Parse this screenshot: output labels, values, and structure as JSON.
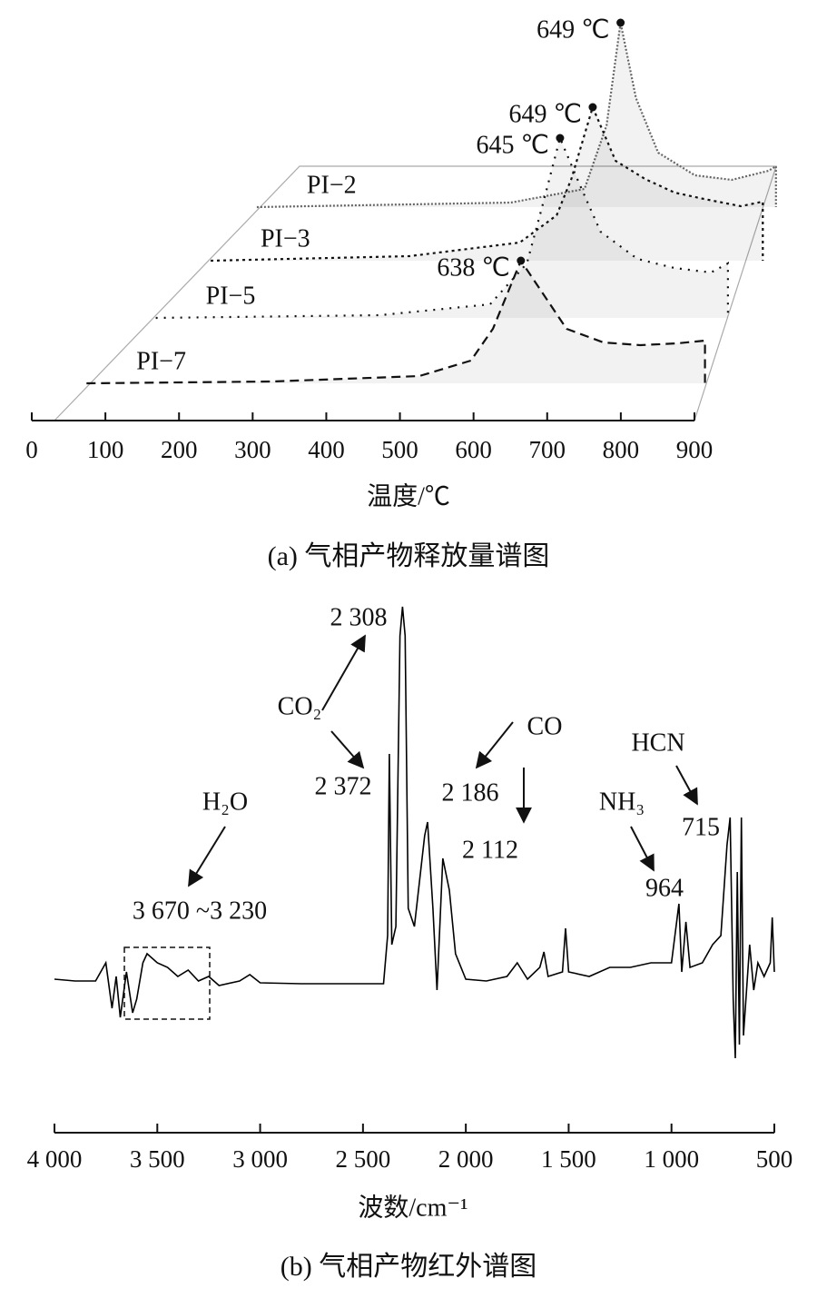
{
  "chart_data": [
    {
      "type": "waterfall",
      "xlabel": "温度/℃",
      "caption": "(a) 气相产物释放量谱图",
      "xlim": [
        0,
        900
      ],
      "xticks": [
        0,
        100,
        200,
        300,
        400,
        500,
        600,
        700,
        800,
        900
      ],
      "series": [
        {
          "name": "PI−2",
          "line_style": "dense-dotted",
          "color": "#666666",
          "x": [
            155,
            500,
            600,
            630,
            649,
            670,
            700,
            750,
            800,
            850,
            860,
            860
          ],
          "values": [
            0,
            5,
            20,
            90,
            203,
            120,
            60,
            35,
            30,
            40,
            45,
            0
          ],
          "peak_x": 649,
          "peak_label": "649 ℃"
        },
        {
          "name": "PI−3",
          "line_style": "dotted",
          "color": "#111111",
          "x": [
            130,
            400,
            550,
            600,
            620,
            649,
            680,
            720,
            760,
            800,
            850,
            880,
            880
          ],
          "values": [
            0,
            5,
            20,
            50,
            90,
            169,
            110,
            90,
            75,
            68,
            60,
            65,
            0
          ],
          "peak_x": 649,
          "peak_label": "649 ℃"
        },
        {
          "name": "PI−5",
          "line_style": "sparse-dotted",
          "color": "#111111",
          "x": [
            96,
            400,
            550,
            600,
            620,
            645,
            670,
            700,
            750,
            800,
            850,
            873,
            873
          ],
          "values": [
            0,
            3,
            15,
            60,
            120,
            198,
            150,
            95,
            65,
            55,
            50,
            60,
            0
          ],
          "peak_x": 645,
          "peak_label": "645 ℃"
        },
        {
          "name": "PI−7",
          "line_style": "dashed",
          "color": "#111111",
          "x": [
            48,
            300,
            500,
            570,
            600,
            638,
            700,
            750,
            800,
            850,
            888,
            888
          ],
          "values": [
            0,
            2,
            8,
            25,
            60,
            135,
            60,
            45,
            42,
            44,
            47,
            0
          ],
          "peak_x": 638,
          "peak_label": "638 ℃"
        }
      ]
    },
    {
      "type": "line",
      "xlabel": "波数/cm⁻¹",
      "caption": "(b) 气相产物红外谱图",
      "xlim": [
        4000,
        500
      ],
      "xticks": [
        {
          "value": 4000,
          "label": "4 000"
        },
        {
          "value": 3500,
          "label": "3 500"
        },
        {
          "value": 3000,
          "label": "3 000"
        },
        {
          "value": 2500,
          "label": "2 500"
        },
        {
          "value": 2000,
          "label": "2 000"
        },
        {
          "value": 1500,
          "label": "1 500"
        },
        {
          "value": 1000,
          "label": "1 000"
        },
        500
      ],
      "color": "#000000",
      "x": [
        4000,
        3900,
        3800,
        3750,
        3720,
        3700,
        3680,
        3650,
        3620,
        3600,
        3570,
        3550,
        3500,
        3450,
        3400,
        3350,
        3300,
        3250,
        3200,
        3100,
        3050,
        3000,
        2800,
        2500,
        2400,
        2380,
        2372,
        2360,
        2340,
        2320,
        2308,
        2295,
        2280,
        2250,
        2200,
        2186,
        2160,
        2140,
        2112,
        2080,
        2050,
        2000,
        1900,
        1800,
        1750,
        1700,
        1640,
        1620,
        1600,
        1530,
        1515,
        1500,
        1400,
        1300,
        1200,
        1100,
        1000,
        964,
        950,
        930,
        910,
        850,
        800,
        760,
        730,
        715,
        700,
        690,
        680,
        670,
        660,
        650,
        620,
        600,
        580,
        550,
        520,
        510,
        500
      ],
      "values": [
        0.5,
        0.3,
        0.3,
        2.3,
        -2.7,
        0.8,
        -3.7,
        1.3,
        -3.2,
        -1.7,
        2.3,
        3.3,
        2.3,
        1.8,
        0.8,
        1.5,
        0.3,
        0.8,
        -0.2,
        0.3,
        1,
        0.1,
        0,
        0,
        0,
        5.3,
        25.3,
        4.3,
        6.3,
        38.3,
        41.5,
        38.3,
        8.3,
        6.3,
        16.3,
        17.8,
        8.3,
        -0.7,
        13.8,
        10.3,
        3.3,
        0.5,
        0.3,
        0.8,
        2.3,
        0.5,
        1.8,
        3.5,
        0.8,
        1.3,
        6.1,
        1.3,
        0.8,
        1.8,
        1.8,
        2.3,
        2.3,
        8.8,
        1.3,
        6.8,
        1.8,
        2.3,
        4.3,
        5.3,
        15.3,
        18.3,
        -1.7,
        -8.2,
        12.3,
        -6.7,
        18.3,
        -5.7,
        4.3,
        -0.7,
        2.3,
        0.8,
        2.3,
        7.3,
        1.3
      ],
      "annotations": [
        "2 308",
        "CO₂",
        "2 372",
        "CO",
        "2 186",
        "2 112",
        "H₂O",
        "3 670 ~3 230",
        "NH₃",
        "964",
        "HCN",
        "715"
      ]
    }
  ]
}
